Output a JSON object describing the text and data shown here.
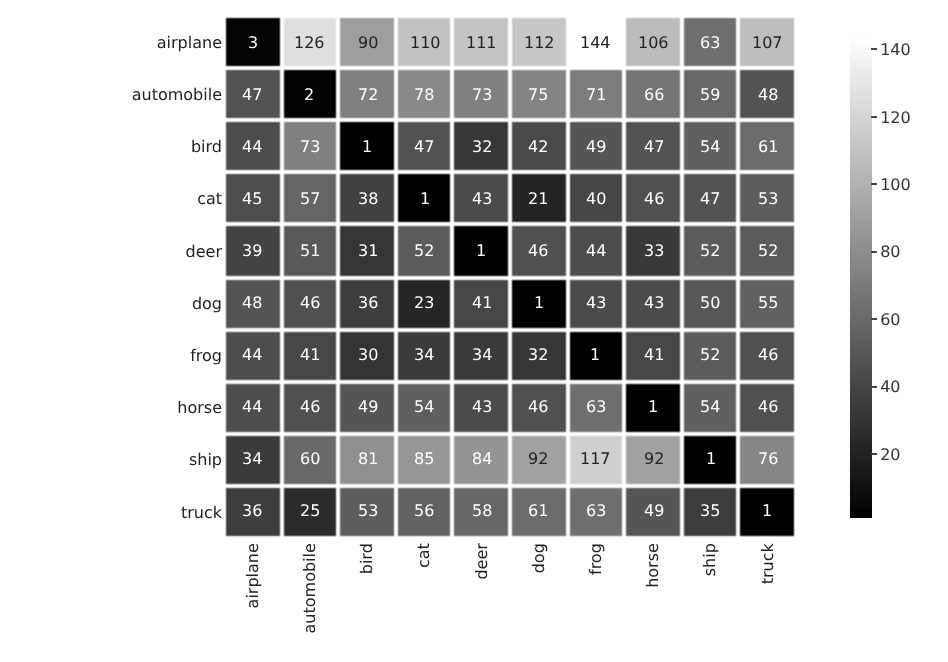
{
  "chart_data": {
    "type": "heatmap",
    "categories": [
      "airplane",
      "automobile",
      "bird",
      "cat",
      "deer",
      "dog",
      "frog",
      "horse",
      "ship",
      "truck"
    ],
    "y_categories": [
      "airplane",
      "automobile",
      "bird",
      "cat",
      "deer",
      "dog",
      "frog",
      "horse",
      "ship",
      "truck"
    ],
    "cells": [
      [
        3,
        126,
        90,
        110,
        111,
        112,
        144,
        106,
        63,
        107
      ],
      [
        47,
        2,
        72,
        78,
        73,
        75,
        71,
        66,
        59,
        48
      ],
      [
        44,
        73,
        1,
        47,
        32,
        42,
        49,
        47,
        54,
        61
      ],
      [
        45,
        57,
        38,
        1,
        43,
        21,
        40,
        46,
        47,
        53
      ],
      [
        39,
        51,
        31,
        52,
        1,
        46,
        44,
        33,
        52,
        52
      ],
      [
        48,
        46,
        36,
        23,
        41,
        1,
        43,
        43,
        50,
        55
      ],
      [
        44,
        41,
        30,
        34,
        34,
        32,
        1,
        41,
        52,
        46
      ],
      [
        44,
        46,
        49,
        54,
        43,
        46,
        63,
        1,
        54,
        46
      ],
      [
        34,
        60,
        81,
        85,
        84,
        92,
        117,
        92,
        1,
        76
      ],
      [
        36,
        25,
        53,
        56,
        58,
        61,
        63,
        49,
        35,
        1
      ]
    ],
    "clim": [
      1,
      144
    ],
    "cticks": [
      20,
      40,
      60,
      80,
      100,
      120,
      140
    ],
    "data_labels": true
  }
}
